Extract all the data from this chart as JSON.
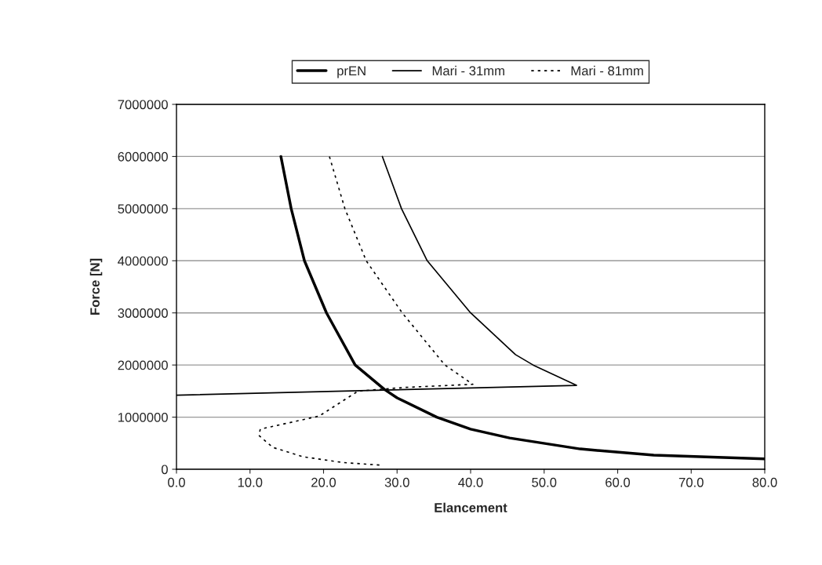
{
  "chart_data": {
    "type": "line",
    "xlabel": "Elancement",
    "ylabel": "Force [N]",
    "xlim": [
      0,
      80
    ],
    "ylim": [
      0,
      7000000
    ],
    "xticks": [
      {
        "value": 0,
        "label": "0.0"
      },
      {
        "value": 10,
        "label": "10.0"
      },
      {
        "value": 20,
        "label": "20.0"
      },
      {
        "value": 30,
        "label": "30.0"
      },
      {
        "value": 40,
        "label": "40.0"
      },
      {
        "value": 50,
        "label": "50.0"
      },
      {
        "value": 60,
        "label": "60.0"
      },
      {
        "value": 70,
        "label": "70.0"
      },
      {
        "value": 80,
        "label": "80.0"
      }
    ],
    "yticks": [
      0,
      1000000,
      2000000,
      3000000,
      4000000,
      5000000,
      6000000,
      7000000
    ],
    "grid": "y",
    "legend": "top",
    "marker": "none",
    "series": [
      {
        "name": "prEN",
        "color": "#000000",
        "line_style": "solid",
        "x": [
          14.2,
          15.6,
          17.4,
          20.4,
          24.3,
          28.3,
          30.0,
          35.4,
          40.0,
          45.3,
          54.9,
          64.9,
          80.0
        ],
        "values": [
          6000000,
          5000000,
          4000000,
          3000000,
          2000000,
          1530000,
          1370000,
          1000000,
          770000,
          600000,
          390000,
          270000,
          200000
        ]
      },
      {
        "name": "Mari - 31mm",
        "color": "#000000",
        "line_style": "solid",
        "x": [
          28.0,
          30.6,
          34.1,
          40.0,
          46.1,
          48.5,
          54.4,
          0.0
        ],
        "values": [
          6000000,
          5000000,
          4000000,
          3000000,
          2200000,
          2000000,
          1610000,
          1420000
        ]
      },
      {
        "name": "Mari - 81mm",
        "color": "#000000",
        "line_style": "dotted",
        "x": [
          20.8,
          22.9,
          25.8,
          30.7,
          36.5,
          40.3,
          31.1,
          24.7,
          19.4,
          11.4,
          11.2,
          13.1,
          17.2,
          22.6,
          27.7
        ],
        "values": [
          6000000,
          5000000,
          4000000,
          3000000,
          2000000,
          1630000,
          1570000,
          1500000,
          1020000,
          770000,
          650000,
          420000,
          240000,
          130000,
          80000
        ]
      }
    ]
  }
}
